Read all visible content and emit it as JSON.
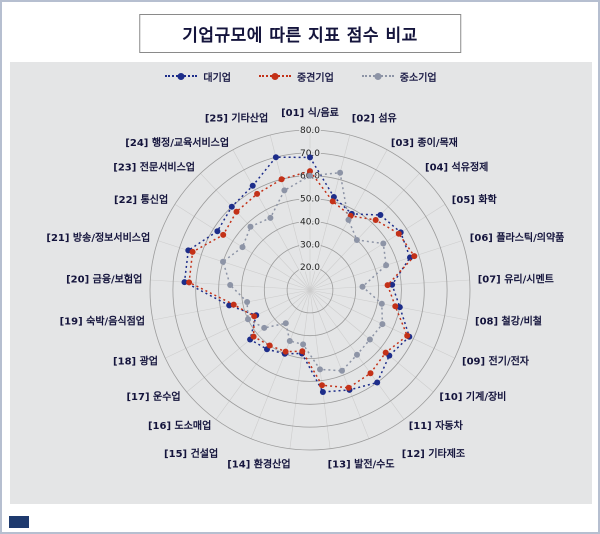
{
  "title": "기업규모에 따른 지표 점수 비교",
  "panel": {
    "background": "#e4e5e6"
  },
  "accent": {
    "corner_color": "#1e3a6e"
  },
  "chart_data": {
    "type": "radar",
    "title": "기업규모에 따른 지표 점수 비교",
    "legend_position": "top",
    "grid": "circular",
    "axis": {
      "center_value": 10,
      "max": 80,
      "rings": [
        20,
        30,
        40,
        50,
        60,
        70,
        80
      ],
      "tick_labels": [
        "20.0",
        "30.0",
        "40.0",
        "50.0",
        "60.0",
        "70.0",
        "80.0"
      ]
    },
    "categories": [
      "[01] 식/음료",
      "[02] 섬유",
      "[03] 종이/목재",
      "[04] 석유정제",
      "[05] 화학",
      "[06] 플라스틱/의약품",
      "[07] 유리/시멘트",
      "[08] 철강/비철",
      "[09] 전기/전자",
      "[10] 기계/장비",
      "[11] 자동차",
      "[12] 기타제조",
      "[13] 발전/수도",
      "[14] 환경산업",
      "[15] 건설업",
      "[16] 도소매업",
      "[17] 운수업",
      "[18] 광업",
      "[19] 숙박/음식점업",
      "[20] 금융/보험업",
      "[21] 방송/정보서비스업",
      "[22] 통신업",
      "[23] 전문서비스업",
      "[24] 행정/교육서비스업",
      "[25] 기타산업"
    ],
    "series": [
      {
        "name": "대기업",
        "color": "#1d2d8a",
        "values": [
          68,
          52,
          48,
          55,
          57,
          56,
          46,
          50,
          58,
          55,
          60,
          57,
          55,
          38,
          40,
          42,
          44,
          36,
          46,
          65,
          66,
          58,
          60,
          62,
          70
        ]
      },
      {
        "name": "중견기업",
        "color": "#c33118",
        "values": [
          62,
          50,
          47,
          52,
          56,
          58,
          44,
          48,
          57,
          53,
          55,
          56,
          52,
          37,
          39,
          40,
          42,
          37,
          44,
          63,
          64,
          55,
          57,
          58,
          60
        ]
      },
      {
        "name": "중소기업",
        "color": "#8d94a6",
        "values": [
          60,
          63,
          45,
          40,
          48,
          45,
          33,
          42,
          45,
          44,
          45,
          48,
          45,
          34,
          34,
          28,
          36,
          40,
          38,
          45,
          50,
          45,
          48,
          46,
          55
        ]
      }
    ]
  }
}
